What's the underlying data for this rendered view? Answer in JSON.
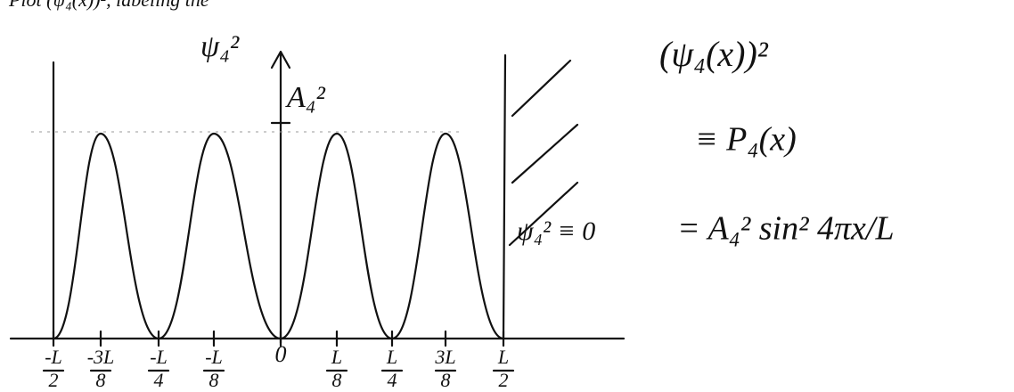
{
  "header": {
    "text": "Plot (ψ₄(x))², labeling the"
  },
  "graph": {
    "y_axis_label": "ψ₄²",
    "peak_label": "A₄²",
    "zero_region_label": "ψ₄² ≡ 0",
    "x_ticks": [
      {
        "num": "-L",
        "den": "2"
      },
      {
        "num": "-3L",
        "den": "8"
      },
      {
        "num": "-L",
        "den": "4"
      },
      {
        "num": "-L",
        "den": "8"
      },
      {
        "num": "0"
      },
      {
        "num": "L",
        "den": "8"
      },
      {
        "num": "L",
        "den": "4"
      },
      {
        "num": "3L",
        "den": "8"
      },
      {
        "num": "L",
        "den": "2"
      }
    ]
  },
  "equations": [
    "(ψ₄(x))²",
    "≡ P₄(x)",
    "= A₄² sin² 4πx/L"
  ]
}
